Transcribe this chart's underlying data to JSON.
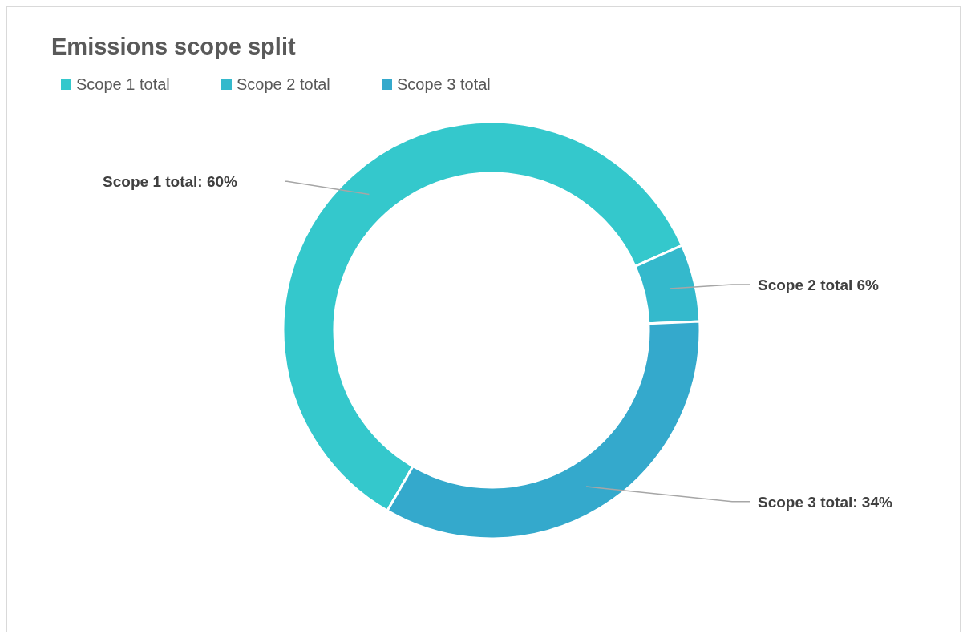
{
  "chart_data": {
    "type": "donut",
    "title": "Emissions scope split",
    "categories": [
      "Scope 1 total",
      "Scope 2 total",
      "Scope 3 total"
    ],
    "values": [
      60,
      6,
      34
    ],
    "colors": [
      "#34c8cc",
      "#34b9cc",
      "#34a9cc"
    ],
    "value_labels": [
      "Scope 1 total: 60%",
      "Scope 2 total 6%",
      "Scope 3 total: 34%"
    ],
    "legend": "top left"
  }
}
